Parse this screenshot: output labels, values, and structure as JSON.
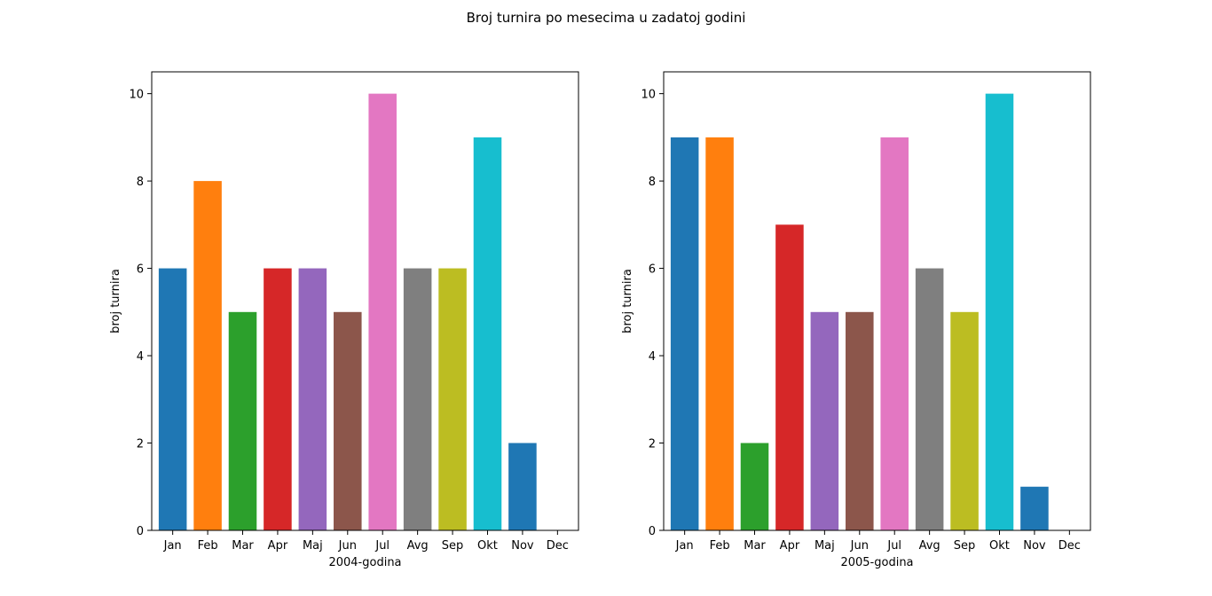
{
  "figure": {
    "title": "Broj turnira po mesecima u zadatoj godini"
  },
  "palette": [
    "#1f77b4",
    "#ff7f0e",
    "#2ca02c",
    "#d62728",
    "#9467bd",
    "#8c564b",
    "#e377c2",
    "#7f7f7f",
    "#bcbd22",
    "#17becf"
  ],
  "chart_data": [
    {
      "type": "bar",
      "categories": [
        "Jan",
        "Feb",
        "Mar",
        "Apr",
        "Maj",
        "Jun",
        "Jul",
        "Avg",
        "Sep",
        "Okt",
        "Nov",
        "Dec"
      ],
      "values": [
        6,
        8,
        5,
        6,
        6,
        5,
        10,
        6,
        6,
        9,
        2,
        0
      ],
      "xlabel": "2004-godina",
      "ylabel": "broj turnira",
      "ylim": [
        0,
        10.5
      ],
      "yticks": [
        "0",
        "2",
        "4",
        "6",
        "8",
        "10"
      ],
      "grid": false
    },
    {
      "type": "bar",
      "categories": [
        "Jan",
        "Feb",
        "Mar",
        "Apr",
        "Maj",
        "Jun",
        "Jul",
        "Avg",
        "Sep",
        "Okt",
        "Nov",
        "Dec"
      ],
      "values": [
        9,
        9,
        2,
        7,
        5,
        5,
        9,
        6,
        5,
        10,
        1,
        0
      ],
      "xlabel": "2005-godina",
      "ylabel": "broj turnira",
      "ylim": [
        0,
        10.5
      ],
      "yticks": [
        "0",
        "2",
        "4",
        "6",
        "8",
        "10"
      ],
      "grid": false
    }
  ]
}
